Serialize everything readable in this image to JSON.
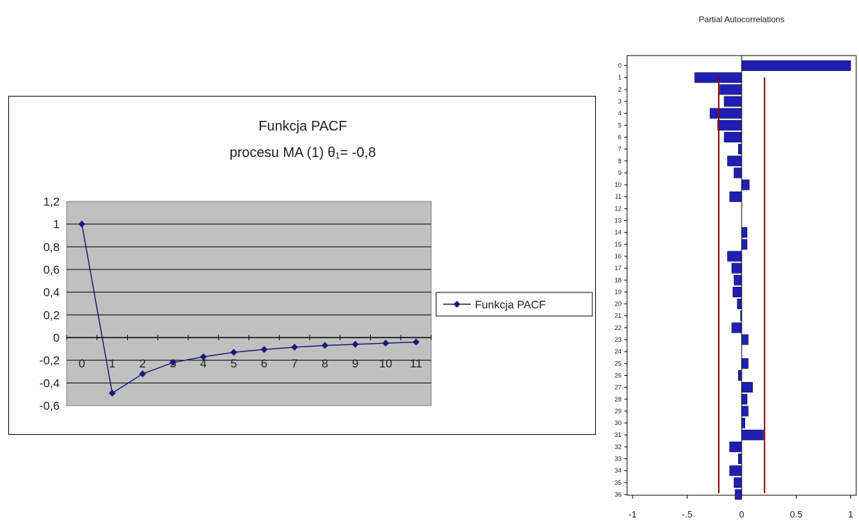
{
  "chart_data": [
    {
      "type": "line",
      "title": "Funkcja PACF",
      "subtitle": "procesu MA (1) θ₁= -0,8",
      "x": [
        0,
        1,
        2,
        3,
        4,
        5,
        6,
        7,
        8,
        9,
        10,
        11
      ],
      "x_tick_labels": [
        "0",
        "1",
        "2",
        "3",
        "4",
        "5",
        "6",
        "7",
        "8",
        "9",
        "10",
        "11"
      ],
      "series": [
        {
          "name": "Funkcja PACF",
          "values": [
            1,
            -0.49,
            -0.32,
            -0.22,
            -0.17,
            -0.13,
            -0.105,
            -0.085,
            -0.07,
            -0.06,
            -0.05,
            -0.04
          ],
          "color": "#1a1a7a"
        }
      ],
      "ylim": [
        -0.6,
        1.2
      ],
      "y_tick_labels": [
        "1,2",
        "1",
        "0,8",
        "0,6",
        "0,4",
        "0,2",
        "0",
        "-0,2",
        "-0,4",
        "-0,6"
      ],
      "grid": true,
      "plot_background": "#c0c0c0",
      "legend": "right"
    },
    {
      "type": "bar",
      "orientation": "horizontal",
      "title": "Partial Autocorrelations",
      "categories": [
        "0",
        "1",
        "2",
        "3",
        "4",
        "5",
        "6",
        "7",
        "8",
        "9",
        "10",
        "11",
        "12",
        "13",
        "14",
        "15",
        "16",
        "17",
        "18",
        "19",
        "20",
        "21",
        "22",
        "23",
        "24",
        "25",
        "26",
        "27",
        "28",
        "29",
        "30",
        "31",
        "32",
        "33",
        "34",
        "35",
        "36"
      ],
      "values": [
        1.0,
        -0.43,
        -0.2,
        -0.16,
        -0.29,
        -0.22,
        -0.16,
        -0.03,
        -0.13,
        -0.07,
        0.07,
        -0.11,
        0,
        0,
        0.05,
        0.05,
        -0.13,
        -0.09,
        -0.07,
        -0.08,
        -0.04,
        -0.01,
        -0.09,
        0.06,
        0,
        0.06,
        -0.03,
        0.1,
        0.05,
        0.06,
        0.03,
        0.2,
        -0.11,
        -0.03,
        -0.11,
        -0.07,
        -0.06
      ],
      "xlim": [
        -1,
        1
      ],
      "x_tick_labels": [
        "-1",
        "-.5",
        "0",
        "0.5",
        "1"
      ],
      "confidence_bounds": [
        -0.21,
        0.21
      ],
      "bar_color": "#1f1fb4",
      "bound_color": "#8b0000"
    }
  ]
}
